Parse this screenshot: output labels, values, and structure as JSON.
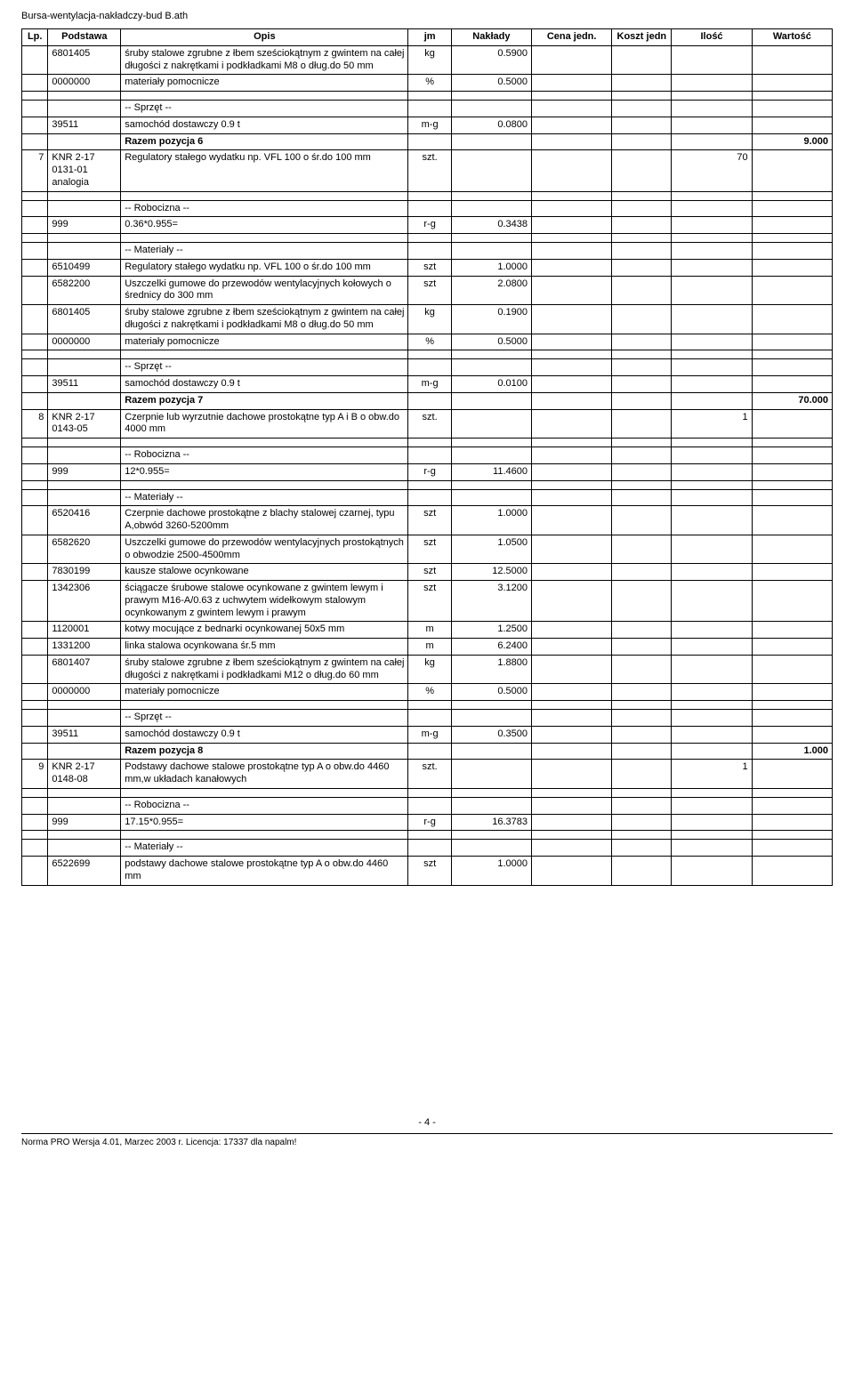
{
  "doc_title": "Bursa-wentylacja-nakładczy-bud B.ath",
  "headers": {
    "lp": "Lp.",
    "podstawa": "Podstawa",
    "opis": "Opis",
    "jm": "jm",
    "naklady": "Nakłady",
    "cena": "Cena jedn.",
    "koszt": "Koszt jedn",
    "ilosc": "Ilość",
    "wartosc": "Wartość"
  },
  "sections": {
    "sprzet": "-- Sprzęt --",
    "robocizna": "-- Robocizna --",
    "materialy": "-- Materiały --"
  },
  "rows": [
    {
      "lp": "",
      "pod": "6801405",
      "opis": "śruby stalowe zgrubne z łbem sześciokątnym z gwintem na całej długości z nakrętkami i podkładkami M8 o dług.do 50 mm",
      "jm": "kg",
      "nak": "0.5900"
    },
    {
      "lp": "",
      "pod": "0000000",
      "opis": "materiały pomocnicze",
      "jm": "%",
      "nak": "0.5000"
    },
    {
      "spacer": true
    },
    {
      "section": "sprzet"
    },
    {
      "lp": "",
      "pod": "39511",
      "opis": "samochód dostawczy 0.9 t",
      "jm": "m-g",
      "nak": "0.0800"
    },
    {
      "razem": true,
      "label": "Razem pozycja 6",
      "wartosc": "9.000"
    },
    {
      "lp": "7",
      "pod": "KNR 2-17 0131-01 analogia",
      "opis": "Regulatory stałego wydatku np. VFL 100 o śr.do 100 mm",
      "jm": "szt.",
      "nak": "",
      "ilosc": "70"
    },
    {
      "spacer": true
    },
    {
      "section": "robocizna"
    },
    {
      "lp": "",
      "pod": "999",
      "opis": "0.36*0.955=",
      "jm": "r-g",
      "nak": "0.3438"
    },
    {
      "spacer": true
    },
    {
      "section": "materialy"
    },
    {
      "lp": "",
      "pod": "6510499",
      "opis": "Regulatory stałego wydatku np. VFL 100 o śr.do 100 mm",
      "jm": "szt",
      "nak": "1.0000"
    },
    {
      "lp": "",
      "pod": "6582200",
      "opis": "Uszczelki gumowe do przewodów wentylacyjnych kołowych o średnicy do 300 mm",
      "jm": "szt",
      "nak": "2.0800"
    },
    {
      "lp": "",
      "pod": "6801405",
      "opis": "śruby stalowe zgrubne z łbem sześciokątnym z gwintem na całej długości z nakrętkami i podkładkami M8 o dług.do 50 mm",
      "jm": "kg",
      "nak": "0.1900"
    },
    {
      "lp": "",
      "pod": "0000000",
      "opis": "materiały pomocnicze",
      "jm": "%",
      "nak": "0.5000"
    },
    {
      "spacer": true
    },
    {
      "section": "sprzet"
    },
    {
      "lp": "",
      "pod": "39511",
      "opis": "samochód dostawczy 0.9 t",
      "jm": "m-g",
      "nak": "0.0100"
    },
    {
      "razem": true,
      "label": "Razem pozycja 7",
      "wartosc": "70.000"
    },
    {
      "lp": "8",
      "pod": "KNR 2-17 0143-05",
      "opis": "Czerpnie lub wyrzutnie dachowe prostokątne typ A i B o obw.do 4000 mm",
      "jm": "szt.",
      "nak": "",
      "ilosc": "1"
    },
    {
      "spacer": true
    },
    {
      "section": "robocizna"
    },
    {
      "lp": "",
      "pod": "999",
      "opis": "12*0.955=",
      "jm": "r-g",
      "nak": "11.4600"
    },
    {
      "spacer": true
    },
    {
      "section": "materialy"
    },
    {
      "lp": "",
      "pod": "6520416",
      "opis": "Czerpnie dachowe prostokątne z blachy stalowej czarnej, typu A,obwód 3260-5200mm",
      "jm": "szt",
      "nak": "1.0000"
    },
    {
      "lp": "",
      "pod": "6582620",
      "opis": "Uszczelki gumowe do przewodów wentylacyjnych prostokątnych o obwodzie  2500-4500mm",
      "jm": "szt",
      "nak": "1.0500"
    },
    {
      "lp": "",
      "pod": "7830199",
      "opis": "kausze stalowe ocynkowane",
      "jm": "szt",
      "nak": "12.5000"
    },
    {
      "lp": "",
      "pod": "1342306",
      "opis": "ściągacze śrubowe stalowe ocynkowane z gwintem lewym i prawym M16-A/0.63 z uchwytem widełkowym stalowym ocynkowanym z gwintem lewym i prawym",
      "jm": "szt",
      "nak": "3.1200"
    },
    {
      "lp": "",
      "pod": "1120001",
      "opis": "kotwy mocujące z bednarki ocynkowanej 50x5 mm",
      "jm": "m",
      "nak": "1.2500"
    },
    {
      "lp": "",
      "pod": "1331200",
      "opis": "linka stalowa ocynkowana śr.5 mm",
      "jm": "m",
      "nak": "6.2400"
    },
    {
      "lp": "",
      "pod": "6801407",
      "opis": "śruby stalowe zgrubne z łbem sześciokątnym z gwintem na całej długości z nakrętkami i podkładkami M12 o dług.do 60 mm",
      "jm": "kg",
      "nak": "1.8800"
    },
    {
      "lp": "",
      "pod": "0000000",
      "opis": "materiały pomocnicze",
      "jm": "%",
      "nak": "0.5000"
    },
    {
      "spacer": true
    },
    {
      "section": "sprzet"
    },
    {
      "lp": "",
      "pod": "39511",
      "opis": "samochód dostawczy 0.9 t",
      "jm": "m-g",
      "nak": "0.3500"
    },
    {
      "razem": true,
      "label": "Razem pozycja 8",
      "wartosc": "1.000"
    },
    {
      "lp": "9",
      "pod": "KNR 2-17 0148-08",
      "opis": "Podstawy dachowe stalowe prostokątne typ A o obw.do 4460 mm,w układach kanałowych",
      "jm": "szt.",
      "nak": "",
      "ilosc": "1"
    },
    {
      "spacer": true
    },
    {
      "section": "robocizna"
    },
    {
      "lp": "",
      "pod": "999",
      "opis": "17.15*0.955=",
      "jm": "r-g",
      "nak": "16.3783"
    },
    {
      "spacer": true
    },
    {
      "section": "materialy"
    },
    {
      "lp": "",
      "pod": "6522699",
      "opis": "podstawy dachowe stalowe prostokątne typ A o obw.do 4460 mm",
      "jm": "szt",
      "nak": "1.0000"
    }
  ],
  "page_num": "- 4 -",
  "footer_text": "Norma PRO Wersja 4.01, Marzec 2003 r. Licencja: 17337 dla napalm!"
}
